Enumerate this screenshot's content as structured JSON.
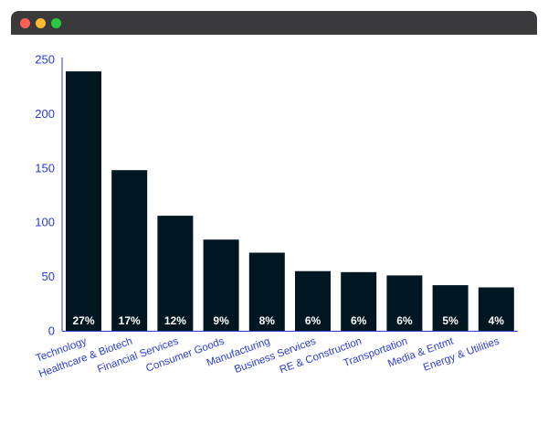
{
  "window": {
    "controls": [
      "close",
      "minimize",
      "zoom"
    ]
  },
  "colors": {
    "bar": "#001722",
    "tick_text": "#2a3bd6",
    "axis": "#2a3bd6",
    "titlebar": "#3a3a3c"
  },
  "chart_data": {
    "type": "bar",
    "categories": [
      "Technology",
      "Healthcare & Biotech",
      "Financial Services",
      "Consumer Goods",
      "Manufacturing",
      "Business Services",
      "RE & Construction",
      "Transportation",
      "Media & Entmt",
      "Energy & Utilities"
    ],
    "values": [
      239,
      148,
      106,
      84,
      72,
      55,
      54,
      51,
      42,
      40
    ],
    "data_labels": [
      "27%",
      "17%",
      "12%",
      "9%",
      "8%",
      "6%",
      "6%",
      "6%",
      "5%",
      "4%"
    ],
    "title": "",
    "xlabel": "",
    "ylabel": "",
    "ylim": [
      0,
      250
    ],
    "yticks": [
      0,
      50,
      100,
      150,
      200,
      250
    ],
    "grid": false,
    "legend": "none"
  }
}
